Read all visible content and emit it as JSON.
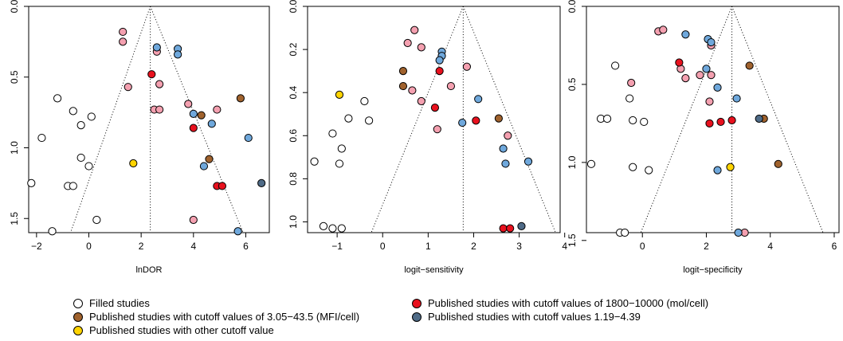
{
  "colors": {
    "filled": "#ffffff",
    "pink": "#f4a0b0",
    "red": "#e8111e",
    "brown": "#a0622d",
    "yellow": "#ffd400",
    "blue": "#6fa8dc",
    "darkblue": "#4f6b87"
  },
  "chart_data": [
    {
      "type": "scatter",
      "subtype": "funnel",
      "xlabel": "lnDOR",
      "ylabel": "",
      "xlim": [
        -2.3,
        6.9
      ],
      "ylim": [
        0,
        1.6
      ],
      "y_reversed": true,
      "xticks": [
        "−2",
        "0",
        "2",
        "4",
        "6"
      ],
      "xtick_values": [
        -2,
        0,
        2,
        4,
        6
      ],
      "yticks": [
        "0.0",
        "0.5",
        "1.0",
        "1.5"
      ],
      "ytick_values": [
        0,
        0.5,
        1.0,
        1.5
      ],
      "center": 2.35,
      "funnel_bottom": [
        -0.7,
        5.9
      ],
      "points": [
        {
          "x": -1.2,
          "y": 0.65,
          "c": "filled"
        },
        {
          "x": -0.6,
          "y": 0.74,
          "c": "filled"
        },
        {
          "x": -0.3,
          "y": 0.84,
          "c": "filled"
        },
        {
          "x": 0.1,
          "y": 0.78,
          "c": "filled"
        },
        {
          "x": -1.8,
          "y": 0.93,
          "c": "filled"
        },
        {
          "x": -0.3,
          "y": 1.07,
          "c": "filled"
        },
        {
          "x": 0.0,
          "y": 1.13,
          "c": "filled"
        },
        {
          "x": -2.2,
          "y": 1.25,
          "c": "filled"
        },
        {
          "x": -0.8,
          "y": 1.27,
          "c": "filled"
        },
        {
          "x": -0.6,
          "y": 1.27,
          "c": "filled"
        },
        {
          "x": 0.3,
          "y": 1.51,
          "c": "filled"
        },
        {
          "x": -1.4,
          "y": 1.59,
          "c": "filled"
        },
        {
          "x": 1.3,
          "y": 0.18,
          "c": "pink"
        },
        {
          "x": 1.3,
          "y": 0.25,
          "c": "pink"
        },
        {
          "x": 1.5,
          "y": 0.57,
          "c": "pink"
        },
        {
          "x": 2.6,
          "y": 0.32,
          "c": "pink"
        },
        {
          "x": 2.7,
          "y": 0.55,
          "c": "pink"
        },
        {
          "x": 2.5,
          "y": 0.73,
          "c": "pink"
        },
        {
          "x": 2.7,
          "y": 0.73,
          "c": "pink"
        },
        {
          "x": 3.8,
          "y": 0.69,
          "c": "pink"
        },
        {
          "x": 4.9,
          "y": 0.73,
          "c": "pink"
        },
        {
          "x": 4.0,
          "y": 1.51,
          "c": "pink"
        },
        {
          "x": 2.4,
          "y": 0.48,
          "c": "red"
        },
        {
          "x": 4.0,
          "y": 0.86,
          "c": "red"
        },
        {
          "x": 4.9,
          "y": 1.27,
          "c": "red"
        },
        {
          "x": 5.1,
          "y": 1.27,
          "c": "red"
        },
        {
          "x": 4.3,
          "y": 0.77,
          "c": "brown"
        },
        {
          "x": 4.6,
          "y": 1.08,
          "c": "brown"
        },
        {
          "x": 5.8,
          "y": 0.65,
          "c": "brown"
        },
        {
          "x": 1.7,
          "y": 1.11,
          "c": "yellow"
        },
        {
          "x": 2.6,
          "y": 0.29,
          "c": "blue"
        },
        {
          "x": 3.4,
          "y": 0.3,
          "c": "blue"
        },
        {
          "x": 3.4,
          "y": 0.34,
          "c": "blue"
        },
        {
          "x": 4.0,
          "y": 0.76,
          "c": "blue"
        },
        {
          "x": 4.7,
          "y": 0.83,
          "c": "blue"
        },
        {
          "x": 6.1,
          "y": 0.93,
          "c": "blue"
        },
        {
          "x": 4.4,
          "y": 1.13,
          "c": "blue"
        },
        {
          "x": 5.7,
          "y": 1.59,
          "c": "blue"
        },
        {
          "x": 6.6,
          "y": 1.25,
          "c": "darkblue"
        }
      ]
    },
    {
      "type": "scatter",
      "subtype": "funnel",
      "xlabel": "logit−sensitivity",
      "ylabel": "",
      "xlim": [
        -1.65,
        3.9
      ],
      "ylim": [
        0,
        1.05
      ],
      "y_reversed": true,
      "xticks": [
        "−1",
        "0",
        "1",
        "2",
        "3",
        "4"
      ],
      "xtick_values": [
        -1,
        0,
        1,
        2,
        3,
        4
      ],
      "yticks": [
        "0.0",
        "0.2",
        "0.4",
        "0.6",
        "0.8",
        "1.0"
      ],
      "ytick_values": [
        0,
        0.2,
        0.4,
        0.6,
        0.8,
        1.0
      ],
      "center": 1.77,
      "funnel_bottom": [
        -0.25,
        3.8
      ],
      "points": [
        {
          "x": -0.4,
          "y": 0.44,
          "c": "filled"
        },
        {
          "x": -0.75,
          "y": 0.52,
          "c": "filled"
        },
        {
          "x": -0.3,
          "y": 0.53,
          "c": "filled"
        },
        {
          "x": -1.1,
          "y": 0.59,
          "c": "filled"
        },
        {
          "x": -0.9,
          "y": 0.66,
          "c": "filled"
        },
        {
          "x": -1.5,
          "y": 0.72,
          "c": "filled"
        },
        {
          "x": -0.95,
          "y": 0.73,
          "c": "filled"
        },
        {
          "x": -1.3,
          "y": 1.02,
          "c": "filled"
        },
        {
          "x": -1.1,
          "y": 1.03,
          "c": "filled"
        },
        {
          "x": -0.9,
          "y": 1.03,
          "c": "filled"
        },
        {
          "x": 0.7,
          "y": 0.11,
          "c": "pink"
        },
        {
          "x": 0.55,
          "y": 0.17,
          "c": "pink"
        },
        {
          "x": 0.85,
          "y": 0.19,
          "c": "pink"
        },
        {
          "x": 1.5,
          "y": 0.37,
          "c": "pink"
        },
        {
          "x": 0.65,
          "y": 0.39,
          "c": "pink"
        },
        {
          "x": 0.85,
          "y": 0.44,
          "c": "pink"
        },
        {
          "x": 1.85,
          "y": 0.28,
          "c": "pink"
        },
        {
          "x": 1.2,
          "y": 0.57,
          "c": "pink"
        },
        {
          "x": 2.75,
          "y": 0.6,
          "c": "pink"
        },
        {
          "x": 1.25,
          "y": 0.3,
          "c": "red"
        },
        {
          "x": 1.15,
          "y": 0.47,
          "c": "red"
        },
        {
          "x": 2.05,
          "y": 0.53,
          "c": "red"
        },
        {
          "x": 2.65,
          "y": 1.03,
          "c": "red"
        },
        {
          "x": 2.8,
          "y": 1.03,
          "c": "red"
        },
        {
          "x": 0.45,
          "y": 0.3,
          "c": "brown"
        },
        {
          "x": 0.45,
          "y": 0.37,
          "c": "brown"
        },
        {
          "x": 2.55,
          "y": 0.52,
          "c": "brown"
        },
        {
          "x": -0.95,
          "y": 0.41,
          "c": "yellow"
        },
        {
          "x": 1.3,
          "y": 0.21,
          "c": "blue"
        },
        {
          "x": 1.3,
          "y": 0.23,
          "c": "blue"
        },
        {
          "x": 1.25,
          "y": 0.25,
          "c": "blue"
        },
        {
          "x": 2.1,
          "y": 0.43,
          "c": "blue"
        },
        {
          "x": 1.75,
          "y": 0.54,
          "c": "blue"
        },
        {
          "x": 2.65,
          "y": 0.66,
          "c": "blue"
        },
        {
          "x": 2.7,
          "y": 0.73,
          "c": "blue"
        },
        {
          "x": 3.2,
          "y": 0.72,
          "c": "blue"
        },
        {
          "x": 3.05,
          "y": 1.02,
          "c": "darkblue"
        }
      ]
    },
    {
      "type": "scatter",
      "subtype": "funnel",
      "xlabel": "logit−specificity",
      "ylabel": "",
      "xlim": [
        -1.75,
        6.15
      ],
      "ylim": [
        0,
        1.45
      ],
      "y_reversed": true,
      "xticks": [
        "0",
        "2",
        "4",
        "6"
      ],
      "xtick_values": [
        0,
        2,
        4,
        6
      ],
      "yticks": [
        "0.0",
        "0.5",
        "1.0",
        "1.5"
      ],
      "ytick_values": [
        0,
        0.5,
        1.0,
        1.5
      ],
      "center": 2.8,
      "funnel_bottom": [
        -0.05,
        5.65
      ],
      "points": [
        {
          "x": -0.85,
          "y": 0.38,
          "c": "filled"
        },
        {
          "x": -0.4,
          "y": 0.59,
          "c": "filled"
        },
        {
          "x": -1.3,
          "y": 0.72,
          "c": "filled"
        },
        {
          "x": -1.1,
          "y": 0.72,
          "c": "filled"
        },
        {
          "x": -0.3,
          "y": 0.73,
          "c": "filled"
        },
        {
          "x": 0.05,
          "y": 0.74,
          "c": "filled"
        },
        {
          "x": -1.6,
          "y": 1.01,
          "c": "filled"
        },
        {
          "x": -0.3,
          "y": 1.03,
          "c": "filled"
        },
        {
          "x": 0.2,
          "y": 1.05,
          "c": "filled"
        },
        {
          "x": -0.7,
          "y": 1.45,
          "c": "filled"
        },
        {
          "x": -0.55,
          "y": 1.45,
          "c": "filled"
        },
        {
          "x": 0.5,
          "y": 0.16,
          "c": "pink"
        },
        {
          "x": 0.65,
          "y": 0.15,
          "c": "pink"
        },
        {
          "x": 1.2,
          "y": 0.4,
          "c": "pink"
        },
        {
          "x": 1.35,
          "y": 0.46,
          "c": "pink"
        },
        {
          "x": 1.8,
          "y": 0.44,
          "c": "pink"
        },
        {
          "x": 2.15,
          "y": 0.44,
          "c": "pink"
        },
        {
          "x": -0.35,
          "y": 0.49,
          "c": "pink"
        },
        {
          "x": 2.1,
          "y": 0.61,
          "c": "pink"
        },
        {
          "x": 2.15,
          "y": 0.25,
          "c": "pink"
        },
        {
          "x": 3.2,
          "y": 1.45,
          "c": "pink"
        },
        {
          "x": 1.15,
          "y": 0.36,
          "c": "red"
        },
        {
          "x": 2.1,
          "y": 0.75,
          "c": "red"
        },
        {
          "x": 2.45,
          "y": 0.74,
          "c": "red"
        },
        {
          "x": 2.8,
          "y": 0.73,
          "c": "red"
        },
        {
          "x": 3.35,
          "y": 0.38,
          "c": "brown"
        },
        {
          "x": 3.8,
          "y": 0.72,
          "c": "brown"
        },
        {
          "x": 4.25,
          "y": 1.01,
          "c": "brown"
        },
        {
          "x": 2.75,
          "y": 1.03,
          "c": "yellow"
        },
        {
          "x": 1.35,
          "y": 0.18,
          "c": "blue"
        },
        {
          "x": 2.05,
          "y": 0.21,
          "c": "blue"
        },
        {
          "x": 2.15,
          "y": 0.23,
          "c": "blue"
        },
        {
          "x": 2.0,
          "y": 0.4,
          "c": "blue"
        },
        {
          "x": 2.35,
          "y": 0.52,
          "c": "blue"
        },
        {
          "x": 2.95,
          "y": 0.59,
          "c": "blue"
        },
        {
          "x": 2.35,
          "y": 1.05,
          "c": "blue"
        },
        {
          "x": 3.0,
          "y": 1.45,
          "c": "blue"
        },
        {
          "x": 3.65,
          "y": 0.72,
          "c": "darkblue"
        }
      ]
    }
  ],
  "legend": {
    "items": [
      {
        "label": "Filled studies",
        "color": "filled"
      },
      {
        "label": "Published studies with cutoff values of 3.05−43.5 (MFI/cell)",
        "color": "brown"
      },
      {
        "label": "Published studies with other cutoff value",
        "color": "yellow"
      },
      {
        "label": "Published studies with cutoff values of 1800−10000 (mol/cell)",
        "color": "red"
      },
      {
        "label": "Published studies with cutoff values 1.19−4.39",
        "color": "darkblue"
      }
    ]
  }
}
